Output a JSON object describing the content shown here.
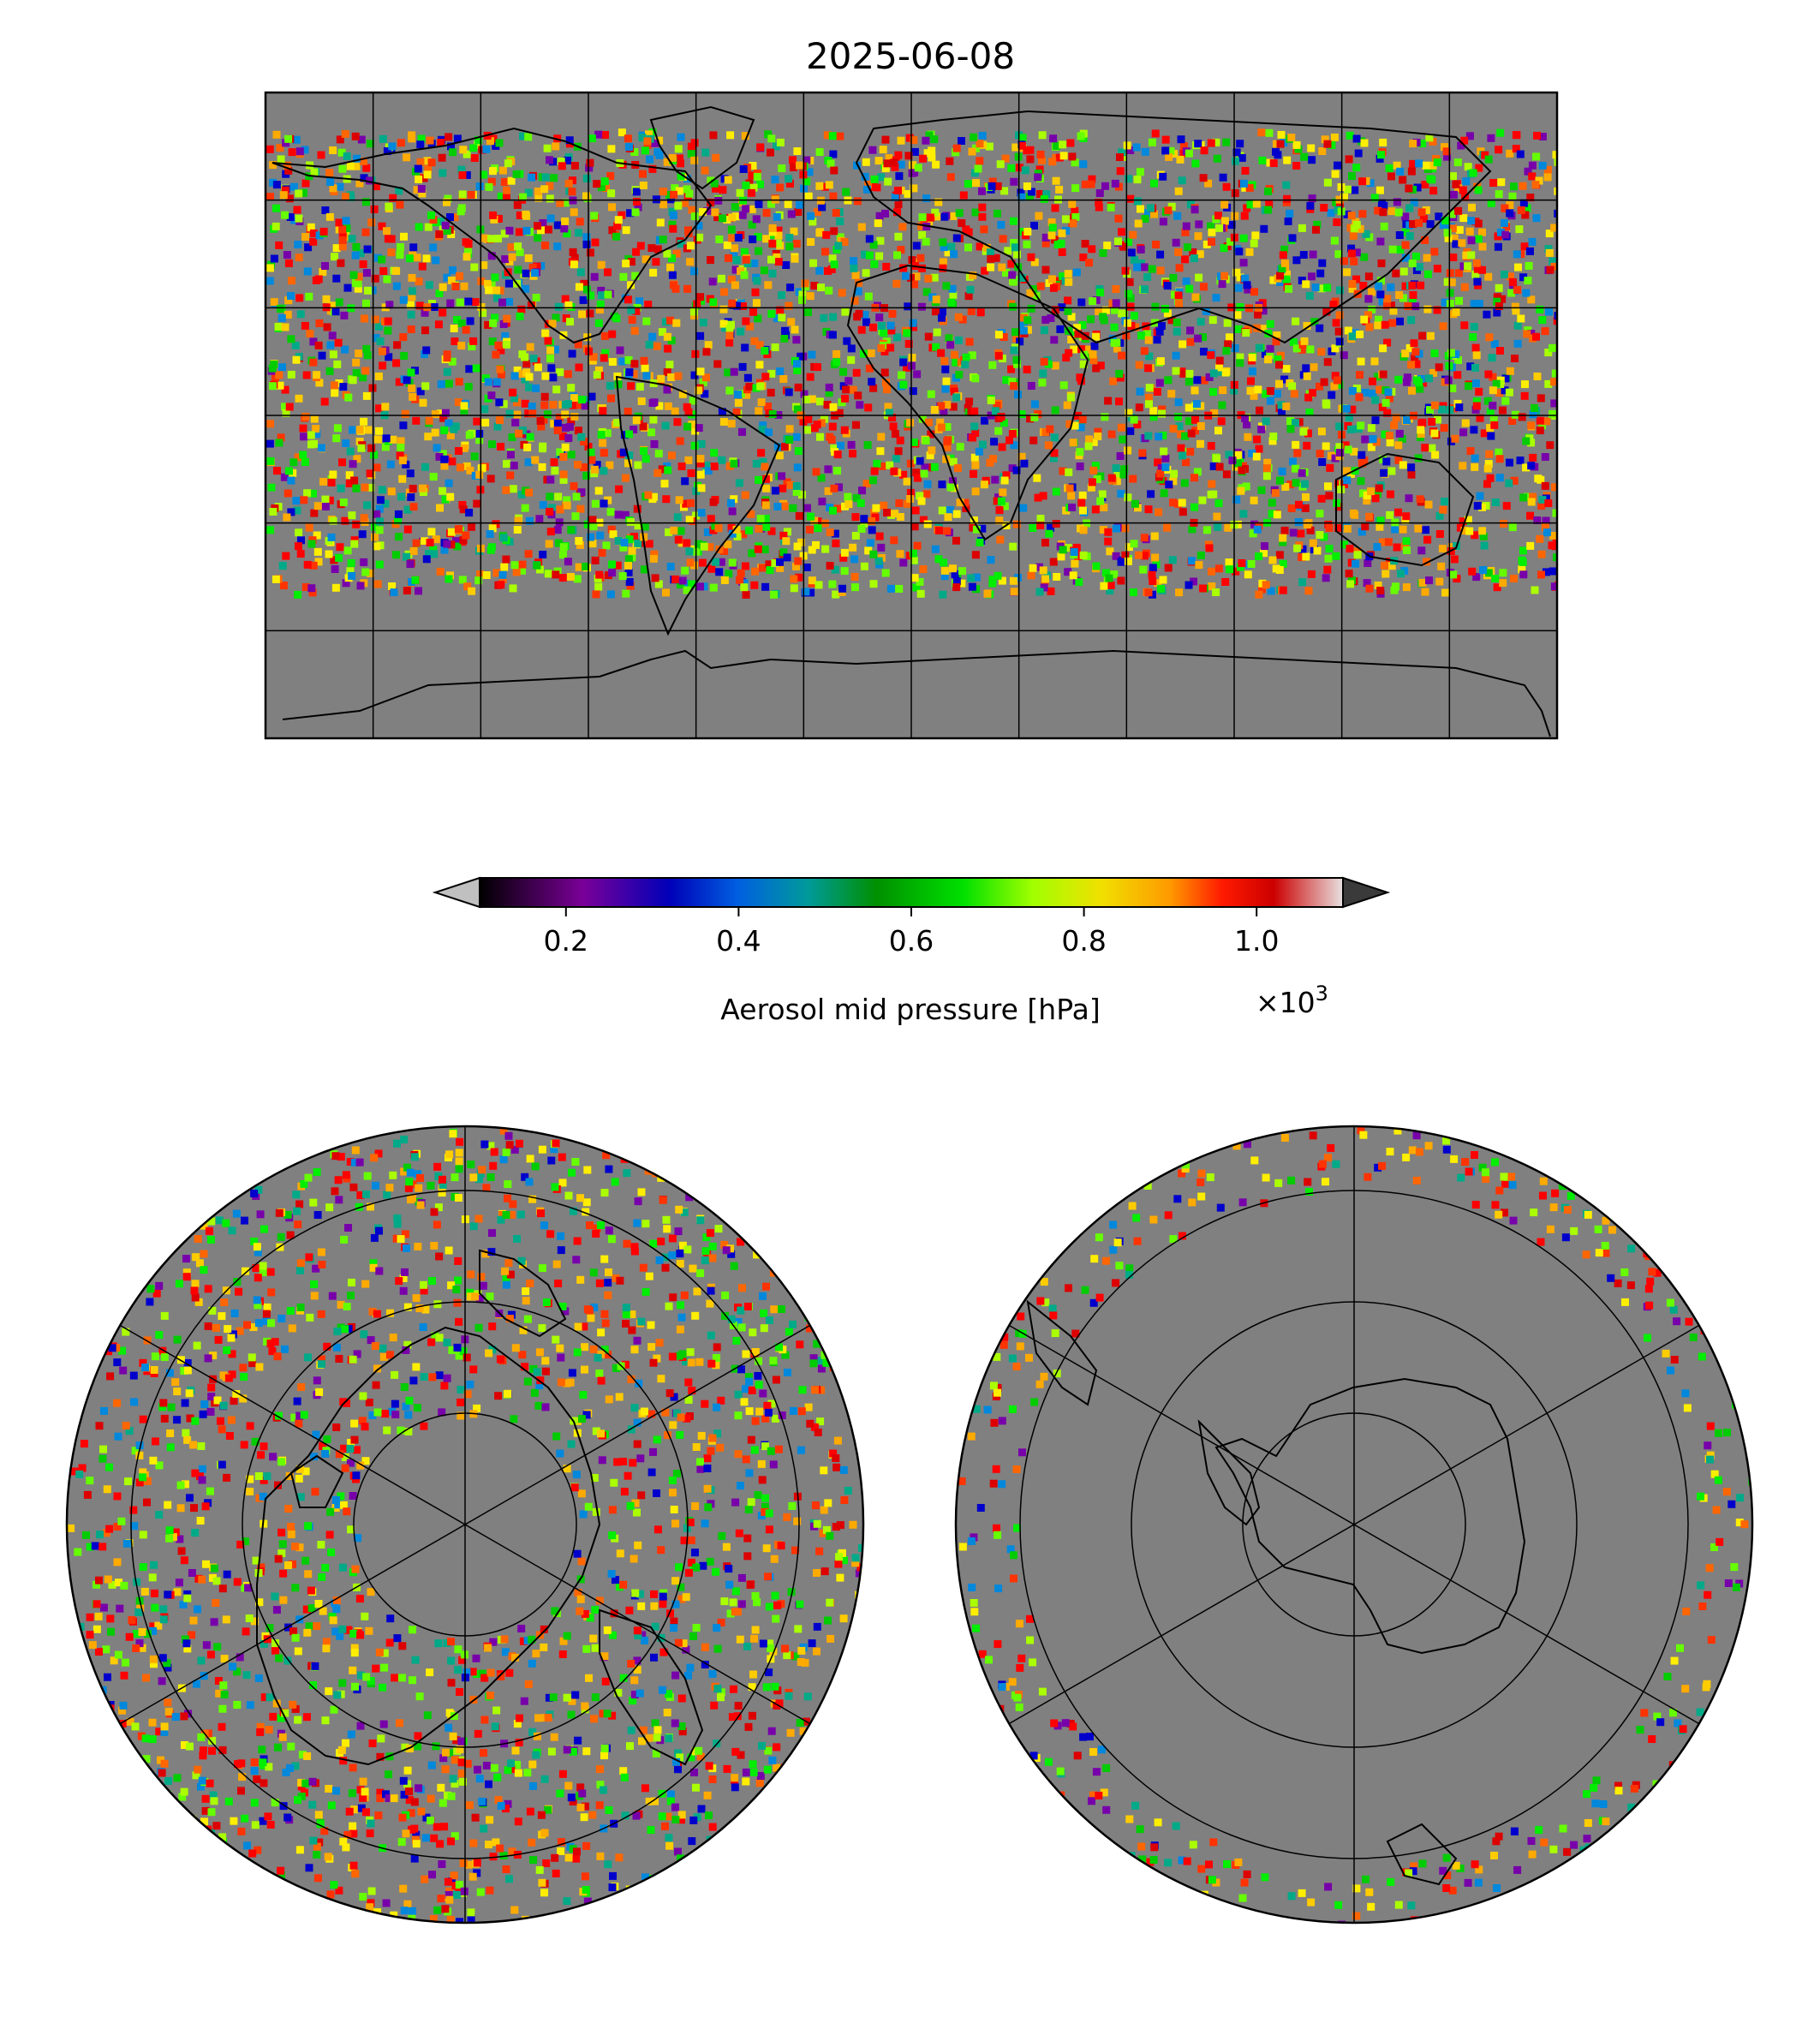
{
  "figure": {
    "title": "2025-06-08"
  },
  "colorbar": {
    "label": "Aerosol mid pressure [hPa]",
    "multiplier": "×10",
    "multiplier_exp": "3",
    "ticks": [
      "0.2",
      "0.4",
      "0.6",
      "0.8",
      "1.0"
    ],
    "tick_values": [
      0.2,
      0.4,
      0.6,
      0.8,
      1.0
    ],
    "range": [
      0.1,
      1.1
    ],
    "extend": "both",
    "colormap": "spectral (black–purple–blue–teal–green–lime–yellow–orange–red–white)",
    "under_color": "#c0c0c0",
    "over_color": "#3a3a3a"
  },
  "maps": {
    "global": {
      "name": "global-map",
      "projection": "equirectangular",
      "background_color": "#808080",
      "gridlines": {
        "lon_step_deg": 30,
        "lat_step_deg": 30
      }
    },
    "north": {
      "name": "north-polar-map",
      "projection": "north-polar-stereographic",
      "background_color": "#808080"
    },
    "south": {
      "name": "south-polar-map",
      "projection": "south-polar-stereographic",
      "background_color": "#808080"
    }
  },
  "chart_data": {
    "type": "heatmap",
    "title": "2025-06-08",
    "colorbar_label": "Aerosol mid pressure [hPa]",
    "value_scale": "×10^3",
    "vmin": 0.1,
    "vmax": 1.1,
    "ticks": [
      0.2,
      0.4,
      0.6,
      0.8,
      1.0
    ],
    "grid": true
  },
  "colors": {
    "no_data": "#808080",
    "coastline": "#000000",
    "gridline": "#000000"
  }
}
